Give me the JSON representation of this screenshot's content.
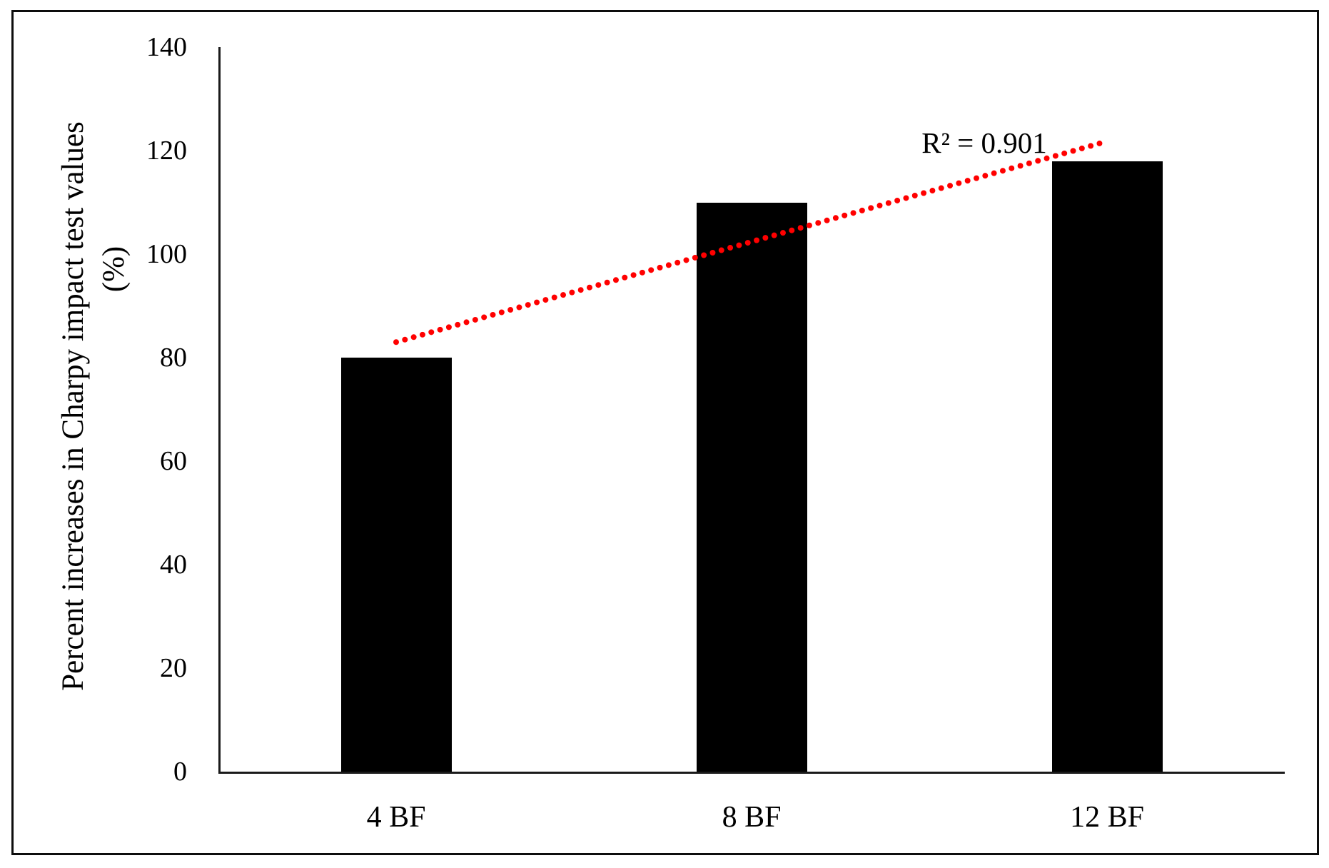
{
  "chart_data": {
    "type": "bar",
    "title": "",
    "categories": [
      "4 BF",
      "8 BF",
      "12 BF"
    ],
    "values": [
      80,
      110,
      118
    ],
    "bar_color": "#000000",
    "axis_color": "#1a1a1a",
    "text_color": "#000000",
    "xlabel": "",
    "ylabel_line1": "Percent increases in Charpy impact test values",
    "ylabel_line2": "(%)",
    "ylim": [
      0,
      140
    ],
    "ytick_step": 20,
    "yticks": [
      0,
      20,
      40,
      60,
      80,
      100,
      120,
      140
    ],
    "grid": false,
    "legend_position": "none",
    "trendline": {
      "type": "linear",
      "style": "dotted",
      "color": "#ff0000",
      "start_value": 83,
      "end_value": 121.8,
      "annotation": "R² = 0.901"
    }
  }
}
